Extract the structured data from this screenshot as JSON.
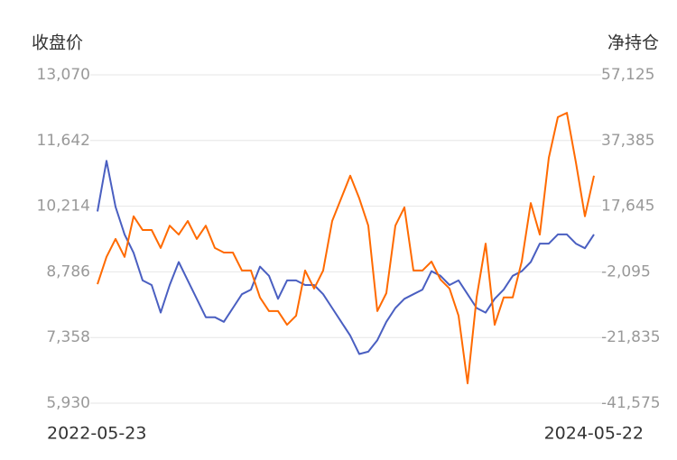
{
  "chart_data": {
    "type": "line",
    "ylabel": "收盘价",
    "y2label": "净持仓",
    "categories": [
      "2022-05-23",
      null,
      null,
      null,
      null,
      null,
      null,
      null,
      null,
      null,
      null,
      null,
      null,
      null,
      null,
      null,
      null,
      null,
      null,
      null,
      null,
      null,
      null,
      null,
      null,
      null,
      null,
      null,
      null,
      null,
      null,
      null,
      null,
      null,
      null,
      null,
      null,
      null,
      null,
      null,
      null,
      null,
      null,
      null,
      null,
      null,
      null,
      null,
      null,
      null,
      null,
      null,
      null,
      null,
      null,
      "2024-05-22"
    ],
    "series": [
      {
        "color": "#4a5fc1",
        "axis": "y",
        "values": [
          10100,
          11200,
          10200,
          9600,
          9200,
          8600,
          8500,
          7900,
          8500,
          9000,
          8600,
          8200,
          7800,
          7800,
          7700,
          8000,
          8300,
          8400,
          8900,
          8700,
          8200,
          8600,
          8600,
          8500,
          8500,
          8300,
          8000,
          7700,
          7400,
          7000,
          7050,
          7300,
          7700,
          8000,
          8200,
          8300,
          8400,
          8800,
          8700,
          8500,
          8600,
          8300,
          8000,
          7900,
          8200,
          8400,
          8700,
          8800,
          9000,
          9400,
          9400,
          9600,
          9600,
          9400,
          9300,
          9600
        ]
      },
      {
        "color": "#ff6a00",
        "axis": "y2",
        "values": [
          -5800,
          2400,
          7800,
          2400,
          14600,
          10500,
          10500,
          5100,
          11800,
          9100,
          13200,
          7800,
          11800,
          5100,
          3700,
          3700,
          -1700,
          -1700,
          -9800,
          -13900,
          -13900,
          -18000,
          -15300,
          -1700,
          -7100,
          -1700,
          13200,
          20000,
          26800,
          20000,
          11800,
          -13900,
          -8500,
          11800,
          17300,
          -1700,
          -1700,
          1000,
          -4400,
          -7100,
          -15300,
          -35600,
          -9800,
          6400,
          -18000,
          -9800,
          -9800,
          1000,
          18600,
          9100,
          32200,
          44400,
          45700,
          30800,
          14600,
          26800
        ]
      }
    ],
    "ylim": [
      5930,
      13070
    ],
    "yticks": [
      {
        "value": 5930,
        "label": "5,930"
      },
      {
        "value": 7358,
        "label": "7,358"
      },
      {
        "value": 8786,
        "label": "8,786"
      },
      {
        "value": 10214,
        "label": "10,214"
      },
      {
        "value": 11642,
        "label": "11,642"
      },
      {
        "value": 13070,
        "label": "13,070"
      }
    ],
    "y2lim": [
      -41575,
      57125
    ],
    "y2ticks": [
      {
        "value": -41575,
        "label": "-41,575"
      },
      {
        "value": -21835,
        "label": "-21,835"
      },
      {
        "value": -2095,
        "label": "-2,095"
      },
      {
        "value": 17645,
        "label": "17,645"
      },
      {
        "value": 37385,
        "label": "37,385"
      },
      {
        "value": 57125,
        "label": "57,125"
      }
    ],
    "grid": true
  }
}
